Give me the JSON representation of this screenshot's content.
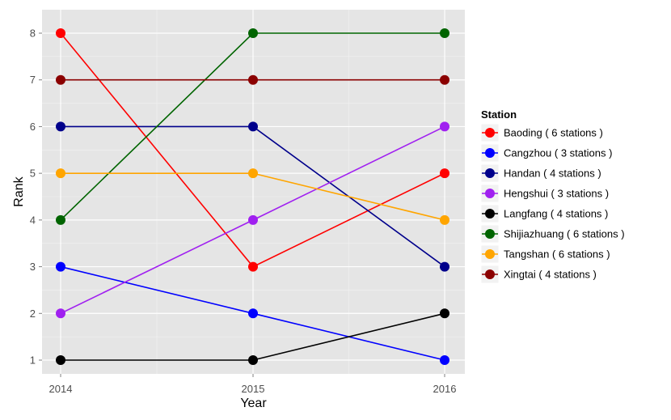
{
  "chart_data": {
    "type": "line",
    "title": "",
    "xlabel": "Year",
    "ylabel": "Rank",
    "x": [
      "2014",
      "2015",
      "2016"
    ],
    "ylim": [
      0.6,
      8.4
    ],
    "yticks": [
      "1",
      "2",
      "3",
      "4",
      "5",
      "6",
      "7",
      "8"
    ],
    "legend": {
      "title": "Station",
      "position": "right"
    },
    "series": [
      {
        "name": "Baoding",
        "label": "Baoding ( 6 stations )",
        "color": "#ff0000",
        "values": [
          8,
          3,
          5
        ]
      },
      {
        "name": "Cangzhou",
        "label": "Cangzhou ( 3 stations )",
        "color": "#0000ff",
        "values": [
          3,
          2,
          1
        ]
      },
      {
        "name": "Handan",
        "label": "Handan ( 4 stations )",
        "color": "#00008b",
        "values": [
          6,
          6,
          3
        ]
      },
      {
        "name": "Hengshui",
        "label": "Hengshui ( 3 stations )",
        "color": "#a020f0",
        "values": [
          2,
          4,
          6
        ]
      },
      {
        "name": "Langfang",
        "label": "Langfang ( 4 stations )",
        "color": "#000000",
        "values": [
          1,
          1,
          2
        ]
      },
      {
        "name": "Shijiazhuang",
        "label": "Shijiazhuang ( 6 stations )",
        "color": "#006400",
        "values": [
          4,
          8,
          8
        ]
      },
      {
        "name": "Tangshan",
        "label": "Tangshan ( 6 stations )",
        "color": "#ffa500",
        "values": [
          5,
          5,
          4
        ]
      },
      {
        "name": "Xingtai",
        "label": "Xingtai ( 4 stations )",
        "color": "#8b0000",
        "values": [
          7,
          7,
          7
        ]
      }
    ]
  }
}
